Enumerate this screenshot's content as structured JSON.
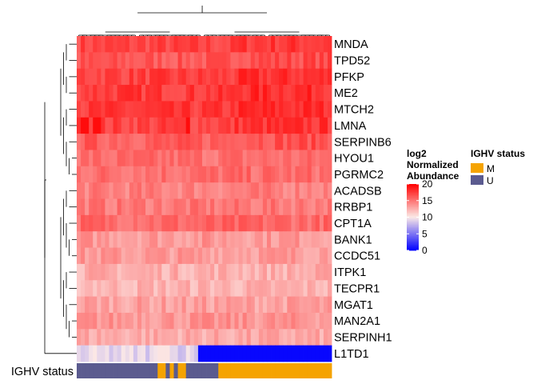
{
  "chart_data": {
    "type": "heatmap",
    "title": "",
    "rows": [
      "MNDA",
      "TPD52",
      "PFKP",
      "ME2",
      "MTCH2",
      "LMNA",
      "SERPINB6",
      "HYOU1",
      "PGRMC2",
      "ACADSB",
      "RRBP1",
      "CPT1A",
      "BANK1",
      "CCDC51",
      "ITPK1",
      "TECPR1",
      "MGAT1",
      "MAN2A1",
      "SERPINH1",
      "L1TD1"
    ],
    "n_columns": 63,
    "row_base_values": [
      17.0,
      16.2,
      17.2,
      17.5,
      17.4,
      17.1,
      16.0,
      15.2,
      15.3,
      14.5,
      14.8,
      15.5,
      13.5,
      13.4,
      12.5,
      12.3,
      13.1,
      13.6,
      12.7,
      9.0
    ],
    "notable_cells": {
      "LMNA_high_columns": [
        1,
        2,
        4,
        5,
        27
      ],
      "L1TD1_low_columns_start": 30,
      "L1TD1_low_value": 0.3,
      "L1TD1_light_columns": [
        20,
        21,
        22
      ]
    },
    "annotation": {
      "label": "IGHV status",
      "values": "UUUUUUUUUUUUUUUUUUUUMMUMUMMUUUUUUUUMMMMMMMMMMMMMMMMMMMMMMMMMMMM"
    },
    "color_scale": {
      "title_lines": [
        "log2",
        "Normalized",
        "Abundance"
      ],
      "ticks": [
        0,
        5,
        10,
        15,
        20
      ],
      "tick_labels": [
        "0",
        "5",
        "10",
        "15",
        "20"
      ],
      "range": [
        0,
        20
      ],
      "colors": [
        {
          "value": 0,
          "color": "#0000ff"
        },
        {
          "value": 10,
          "color": "#fbe9e7"
        },
        {
          "value": 20,
          "color": "#ff0000"
        }
      ]
    },
    "legend": {
      "title": "IGHV status",
      "entries": [
        {
          "label": "M",
          "key": "M",
          "color": "#f5a300"
        },
        {
          "label": "U",
          "key": "U",
          "color": "#5b5b8f"
        }
      ]
    },
    "dendrogram_color": "#000000",
    "grid": false
  }
}
